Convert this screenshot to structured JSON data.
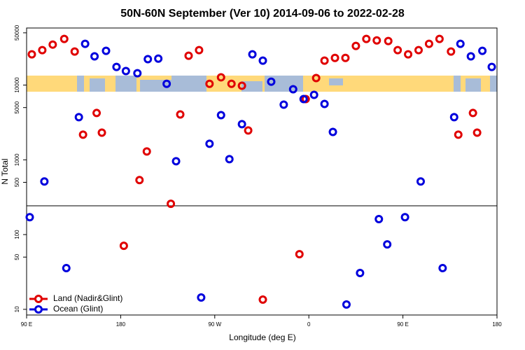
{
  "chart_data": {
    "type": "scatter",
    "title": "50N-60N September (Ver 10)   2014-09-06 to 2022-02-28",
    "x_label": "Longitude (deg E)",
    "y_label": "N Total",
    "xlim": [
      90,
      540
    ],
    "ylim": [
      8.4,
      58000
    ],
    "ylog": true,
    "xticks": [
      {
        "value": 90,
        "label": "90 E"
      },
      180,
      {
        "value": 270,
        "label": "90 W"
      },
      {
        "value": 360,
        "label": "0"
      },
      {
        "value": 450,
        "label": "90 E"
      },
      {
        "value": 540,
        "label": "180"
      }
    ],
    "yticks": [
      10,
      50,
      100,
      500,
      1000,
      5000,
      10000,
      50000
    ],
    "legend": "bottom-left",
    "series": [
      {
        "name": "Land (Nadir&Glint)",
        "color": "#e00000",
        "x": [
          95,
          105,
          115,
          126,
          136,
          144,
          157,
          162,
          183,
          198,
          205,
          228,
          237,
          245,
          255,
          265,
          276,
          286,
          296,
          302,
          316,
          351,
          357,
          367,
          375,
          385,
          395,
          405,
          415,
          425,
          436,
          445,
          455,
          465,
          475,
          485,
          496,
          503,
          517,
          521
        ],
        "values": [
          25800,
          29300,
          34800,
          41400,
          28100,
          2170,
          4230,
          2310,
          70.8,
          536,
          1295,
          258,
          4050,
          24700,
          29300,
          10400,
          12700,
          10400,
          9790,
          2470,
          13.5,
          54.7,
          6500,
          12400,
          21200,
          23100,
          23100,
          33400,
          41400,
          39600,
          38800,
          29300,
          25800,
          29300,
          35600,
          41400,
          28100,
          2170,
          4230,
          2310
        ]
      },
      {
        "name": "Ocean (Glint)",
        "color": "#0000dd",
        "x": [
          93,
          107,
          128,
          140,
          146,
          155,
          166,
          176,
          185,
          196,
          206,
          216,
          224,
          233,
          257,
          265,
          276,
          284,
          296,
          306,
          316,
          324,
          336,
          345,
          355,
          365,
          375,
          383,
          396,
          409,
          427,
          435,
          452,
          467,
          488,
          499,
          505,
          515,
          526,
          535
        ],
        "values": [
          171,
          513,
          35.6,
          3720,
          35600,
          24200,
          28700,
          17500,
          15400,
          14400,
          22200,
          22600,
          10400,
          958,
          14.4,
          1640,
          3960,
          1020,
          3000,
          25800,
          21200,
          11100,
          5470,
          8790,
          6500,
          7400,
          5590,
          2360,
          11.6,
          30.6,
          161,
          74,
          171,
          513,
          35.6,
          3720,
          35600,
          24200,
          28700,
          17500
        ]
      }
    ]
  }
}
